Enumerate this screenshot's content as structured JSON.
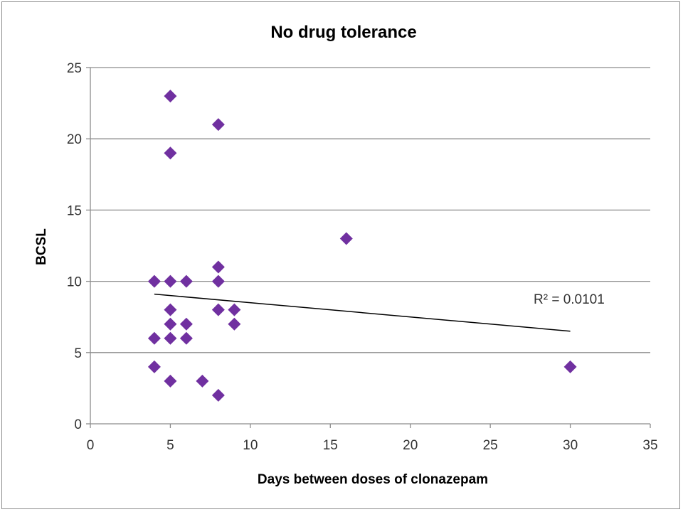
{
  "chart_data": {
    "type": "scatter",
    "title": "No drug tolerance",
    "xlabel": "Days between doses of clonazepam",
    "ylabel": "BCSL",
    "xlim": [
      0,
      35
    ],
    "ylim": [
      0,
      25
    ],
    "x_ticks": [
      0,
      5,
      10,
      15,
      20,
      25,
      30,
      35
    ],
    "y_ticks": [
      0,
      5,
      10,
      15,
      20,
      25
    ],
    "x_tick_labels": [
      "0",
      "5",
      "10",
      "15",
      "20",
      "25",
      "30",
      "35"
    ],
    "y_tick_labels": [
      "0",
      "5",
      "10",
      "15",
      "20",
      "25"
    ],
    "grid": true,
    "marker": "diamond",
    "series": [
      {
        "name": "BCSL",
        "color": "#7030A0",
        "points": [
          {
            "x": 4,
            "y": 10
          },
          {
            "x": 4,
            "y": 6
          },
          {
            "x": 4,
            "y": 4
          },
          {
            "x": 5,
            "y": 23
          },
          {
            "x": 5,
            "y": 19
          },
          {
            "x": 5,
            "y": 10
          },
          {
            "x": 5,
            "y": 8
          },
          {
            "x": 5,
            "y": 7
          },
          {
            "x": 5,
            "y": 6
          },
          {
            "x": 5,
            "y": 3
          },
          {
            "x": 6,
            "y": 10
          },
          {
            "x": 6,
            "y": 7
          },
          {
            "x": 6,
            "y": 6
          },
          {
            "x": 7,
            "y": 3
          },
          {
            "x": 8,
            "y": 21
          },
          {
            "x": 8,
            "y": 11
          },
          {
            "x": 8,
            "y": 10
          },
          {
            "x": 8,
            "y": 8
          },
          {
            "x": 8,
            "y": 2
          },
          {
            "x": 9,
            "y": 8
          },
          {
            "x": 9,
            "y": 7
          },
          {
            "x": 16,
            "y": 13
          },
          {
            "x": 30,
            "y": 4
          }
        ]
      }
    ],
    "trendline": {
      "type": "linear",
      "color": "#000000",
      "start": {
        "x": 4,
        "y": 9.1
      },
      "end": {
        "x": 30,
        "y": 6.5
      },
      "label": "R² = 0.0101"
    }
  }
}
